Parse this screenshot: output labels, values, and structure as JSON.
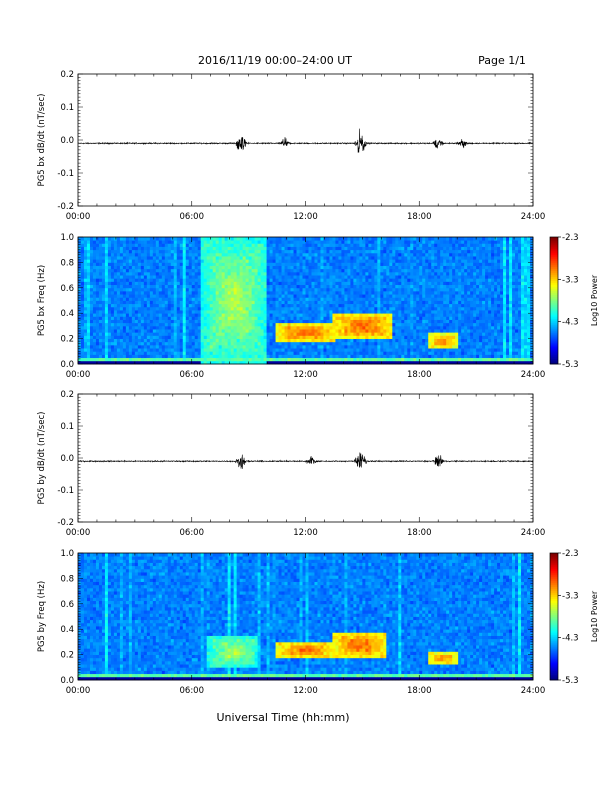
{
  "header": {
    "title": "2016/11/19   00:00–24:00 UT",
    "page": "Page 1/1"
  },
  "footer": {
    "xlabel": "Universal Time (hh:mm)"
  },
  "chart_data": [
    {
      "type": "line",
      "ylabel": "PG5 bx dB/dt (nT/sec)",
      "xlim": [
        "00:00",
        "24:00"
      ],
      "ylim": [
        -0.2,
        0.2
      ],
      "x_ticks": [
        "00:00",
        "06:00",
        "12:00",
        "18:00",
        "24:00"
      ],
      "y_ticks": [
        "-0.2",
        "-0.1",
        "0.0",
        "0.1",
        "0.2"
      ],
      "baseline": -0.01,
      "bursts": [
        {
          "t": 8.6,
          "amp": 0.03
        },
        {
          "t": 10.9,
          "amp": 0.015
        },
        {
          "t": 14.9,
          "amp": 0.04
        },
        {
          "t": 19.0,
          "amp": 0.02
        },
        {
          "t": 20.3,
          "amp": 0.015
        }
      ]
    },
    {
      "type": "heatmap",
      "ylabel": "PG5 bx Freq (Hz)",
      "xlim": [
        "00:00",
        "24:00"
      ],
      "ylim": [
        0.0,
        1.0
      ],
      "x_ticks": [
        "00:00",
        "06:00",
        "12:00",
        "18:00",
        "24:00"
      ],
      "y_ticks": [
        "0.0",
        "0.2",
        "0.4",
        "0.6",
        "0.8",
        "1.0"
      ],
      "colorbar": {
        "label": "Log10 Power",
        "range": [
          -5.3,
          -2.3
        ],
        "ticks": [
          "-2.3",
          "-3.3",
          "-4.3",
          "-5.3"
        ]
      },
      "features": [
        {
          "t": [
            6.5,
            10.0
          ],
          "f": [
            0.0,
            1.0
          ],
          "level": -3.6
        },
        {
          "t": [
            10.5,
            13.5
          ],
          "f": [
            0.18,
            0.32
          ],
          "level": -2.9
        },
        {
          "t": [
            13.5,
            16.5
          ],
          "f": [
            0.2,
            0.4
          ],
          "level": -2.9
        },
        {
          "t": [
            18.5,
            20.0
          ],
          "f": [
            0.12,
            0.24
          ],
          "level": -3.0
        }
      ]
    },
    {
      "type": "line",
      "ylabel": "PG5 by dB/dt (nT/sec)",
      "xlim": [
        "00:00",
        "24:00"
      ],
      "ylim": [
        -0.2,
        0.2
      ],
      "x_ticks": [
        "00:00",
        "06:00",
        "12:00",
        "18:00",
        "24:00"
      ],
      "y_ticks": [
        "-0.2",
        "-0.1",
        "0.0",
        "0.1",
        "0.2"
      ],
      "baseline": -0.01,
      "bursts": [
        {
          "t": 8.6,
          "amp": 0.025
        },
        {
          "t": 12.3,
          "amp": 0.015
        },
        {
          "t": 14.9,
          "amp": 0.045
        },
        {
          "t": 19.0,
          "amp": 0.02
        }
      ]
    },
    {
      "type": "heatmap",
      "ylabel": "PG5 by Freq (Hz)",
      "xlim": [
        "00:00",
        "24:00"
      ],
      "ylim": [
        0.0,
        1.0
      ],
      "x_ticks": [
        "00:00",
        "06:00",
        "12:00",
        "18:00",
        "24:00"
      ],
      "y_ticks": [
        "0.0",
        "0.2",
        "0.4",
        "0.6",
        "0.8",
        "1.0"
      ],
      "colorbar": {
        "label": "Log10 Power",
        "range": [
          -5.3,
          -2.3
        ],
        "ticks": [
          "-2.3",
          "-3.3",
          "-4.3",
          "-5.3"
        ]
      },
      "features": [
        {
          "t": [
            6.8,
            9.5
          ],
          "f": [
            0.1,
            0.35
          ],
          "level": -3.6
        },
        {
          "t": [
            10.5,
            13.5
          ],
          "f": [
            0.18,
            0.3
          ],
          "level": -2.9
        },
        {
          "t": [
            13.5,
            16.2
          ],
          "f": [
            0.18,
            0.38
          ],
          "level": -2.9
        },
        {
          "t": [
            18.5,
            20.0
          ],
          "f": [
            0.12,
            0.22
          ],
          "level": -3.0
        }
      ]
    }
  ]
}
